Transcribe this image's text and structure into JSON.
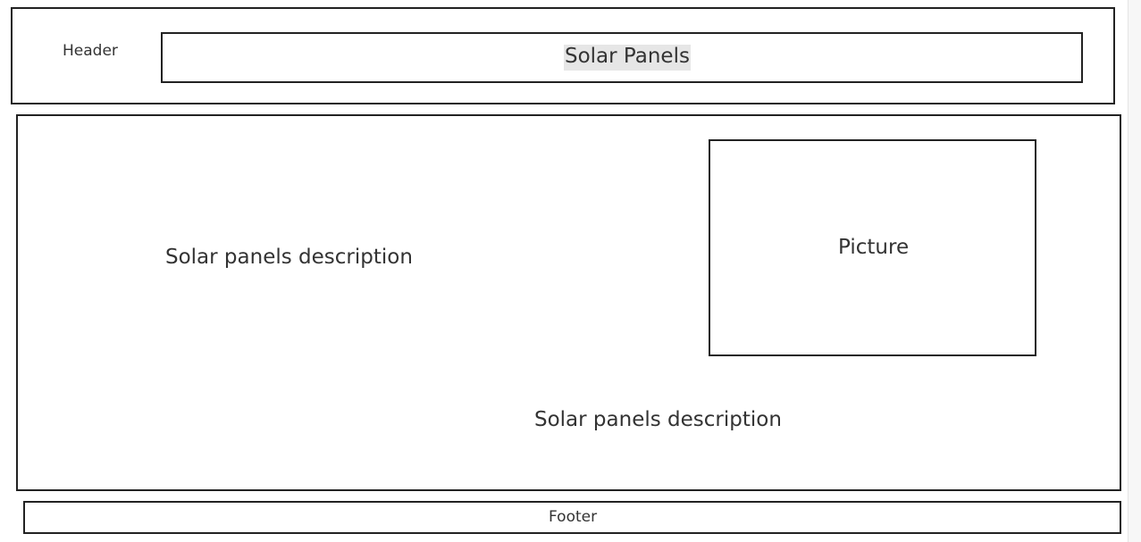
{
  "header": {
    "label": "Header",
    "title": "Solar Panels"
  },
  "main": {
    "description_1": "Solar panels description",
    "picture_label": "Picture",
    "description_2": "Solar panels description"
  },
  "footer": {
    "label": "Footer"
  }
}
